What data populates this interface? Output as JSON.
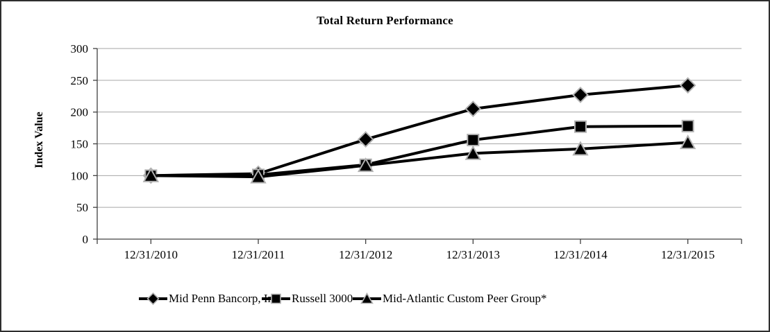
{
  "window": {
    "background": "#ffffff",
    "border_color": "#2e2e2e"
  },
  "chart_data": {
    "type": "line",
    "title": "Total Return Performance",
    "xlabel": "",
    "ylabel": "Index Value",
    "categories": [
      "12/31/2010",
      "12/31/2011",
      "12/31/2012",
      "12/31/2013",
      "12/31/2014",
      "12/31/2015"
    ],
    "series": [
      {
        "name": "Mid Penn Bancorp, Inc.",
        "marker": "diamond",
        "values": [
          100,
          103,
          157,
          205,
          227,
          242
        ]
      },
      {
        "name": "Russell 3000",
        "marker": "square",
        "values": [
          100,
          101,
          117,
          156,
          177,
          178
        ]
      },
      {
        "name": "Mid-Atlantic Custom Peer Group*",
        "marker": "triangle",
        "values": [
          100,
          98,
          116,
          135,
          142,
          152
        ]
      }
    ],
    "y_ticks": [
      0,
      50,
      100,
      150,
      200,
      250,
      300
    ],
    "ylim": [
      0,
      300
    ],
    "grid": true,
    "legend_position": "bottom",
    "colors": {
      "series_line": "#000000",
      "marker_fill": "#000000",
      "marker_edge": "#b0b0b0",
      "gridline": "#a6a6a6",
      "axis": "#404040",
      "text": "#000000"
    }
  }
}
